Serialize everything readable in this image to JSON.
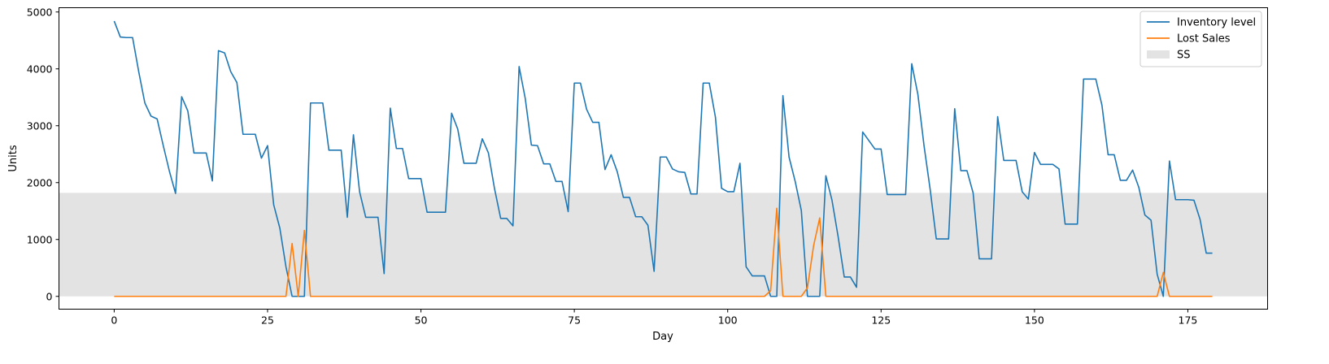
{
  "chart_data": {
    "type": "line",
    "xlabel": "Day",
    "ylabel": "Units",
    "xlim": [
      -9,
      188
    ],
    "ylim": [
      -225,
      5075
    ],
    "x_ticks": [
      0,
      25,
      50,
      75,
      100,
      125,
      150,
      175
    ],
    "y_ticks": [
      0,
      1000,
      2000,
      3000,
      4000,
      5000
    ],
    "grid": false,
    "legend_position": "top-right",
    "ss_band": {
      "label": "SS",
      "y_from": 0,
      "y_to": 1820,
      "color": "#e3e3e3"
    },
    "series": [
      {
        "name": "Inventory level",
        "color": "#1f77b4",
        "x": [
          0,
          1,
          2,
          3,
          4,
          5,
          6,
          7,
          8,
          9,
          10,
          11,
          12,
          13,
          14,
          15,
          16,
          17,
          18,
          19,
          20,
          21,
          22,
          23,
          24,
          25,
          26,
          27,
          28,
          29,
          30,
          31,
          32,
          33,
          34,
          35,
          36,
          37,
          38,
          39,
          40,
          41,
          42,
          43,
          44,
          45,
          46,
          47,
          48,
          49,
          50,
          51,
          52,
          53,
          54,
          55,
          56,
          57,
          58,
          59,
          60,
          61,
          62,
          63,
          64,
          65,
          66,
          67,
          68,
          69,
          70,
          71,
          72,
          73,
          74,
          75,
          76,
          77,
          78,
          79,
          80,
          81,
          82,
          83,
          84,
          85,
          86,
          87,
          88,
          89,
          90,
          91,
          92,
          93,
          94,
          95,
          96,
          97,
          98,
          99,
          100,
          101,
          102,
          103,
          104,
          105,
          106,
          107,
          108,
          109,
          110,
          111,
          112,
          113,
          114,
          115,
          116,
          117,
          118,
          119,
          120,
          121,
          122,
          123,
          124,
          125,
          126,
          127,
          128,
          129,
          130,
          131,
          132,
          133,
          134,
          135,
          136,
          137,
          138,
          139,
          140,
          141,
          142,
          143,
          144,
          145,
          146,
          147,
          148,
          149,
          150,
          151,
          152,
          153,
          154,
          155,
          156,
          157,
          158,
          159,
          160,
          161,
          162,
          163,
          164,
          165,
          166,
          167,
          168,
          169,
          170,
          171,
          172,
          173,
          174,
          175,
          176,
          177,
          178,
          179
        ],
        "values": [
          4840,
          4560,
          4550,
          4550,
          3950,
          3400,
          3170,
          3120,
          2650,
          2200,
          1810,
          3510,
          3260,
          2520,
          2520,
          2520,
          2030,
          4320,
          4280,
          3950,
          3760,
          2850,
          2850,
          2850,
          2430,
          2650,
          1610,
          1200,
          520,
          0,
          0,
          0,
          3400,
          3400,
          3400,
          2570,
          2570,
          2570,
          1390,
          2840,
          1840,
          1390,
          1390,
          1390,
          400,
          3310,
          2600,
          2600,
          2070,
          2070,
          2070,
          1480,
          1480,
          1480,
          1480,
          3220,
          2940,
          2340,
          2340,
          2340,
          2770,
          2520,
          1890,
          1370,
          1370,
          1240,
          4040,
          3480,
          2660,
          2650,
          2330,
          2330,
          2020,
          2020,
          1490,
          3750,
          3750,
          3290,
          3060,
          3060,
          2230,
          2490,
          2190,
          1740,
          1740,
          1400,
          1400,
          1250,
          440,
          2450,
          2450,
          2240,
          2190,
          2180,
          1800,
          1800,
          3750,
          3750,
          3150,
          1900,
          1840,
          1840,
          2340,
          520,
          360,
          360,
          360,
          0,
          0,
          3530,
          2450,
          2020,
          1510,
          0,
          0,
          0,
          2120,
          1690,
          1050,
          340,
          340,
          160,
          2890,
          2740,
          2590,
          2590,
          1790,
          1790,
          1790,
          1790,
          4090,
          3550,
          2650,
          1880,
          1010,
          1010,
          1010,
          3300,
          2210,
          2210,
          1820,
          660,
          660,
          660,
          3160,
          2390,
          2390,
          2390,
          1840,
          1710,
          2530,
          2320,
          2320,
          2320,
          2240,
          1270,
          1270,
          1270,
          3820,
          3820,
          3820,
          3360,
          2490,
          2490,
          2040,
          2040,
          2220,
          1920,
          1430,
          1340,
          390,
          0,
          2380,
          1700,
          1700,
          1700,
          1690,
          1350,
          760,
          760
        ]
      },
      {
        "name": "Lost Sales",
        "color": "#ff7f0e",
        "x": [
          0,
          28,
          29,
          30,
          31,
          32,
          106,
          107,
          108,
          109,
          112,
          113,
          114,
          115,
          116,
          170,
          171,
          172,
          179
        ],
        "values": [
          0,
          0,
          930,
          0,
          1160,
          0,
          0,
          100,
          1550,
          0,
          0,
          150,
          890,
          1380,
          0,
          0,
          420,
          0,
          0
        ]
      }
    ]
  }
}
